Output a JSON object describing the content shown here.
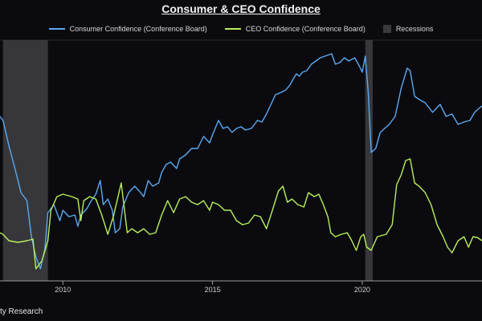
{
  "chart_data": {
    "type": "line",
    "title": "Consumer & CEO Confidence",
    "x_range": [
      2007.9,
      2024.0
    ],
    "x_ticks": [
      "2010",
      "2015",
      "2020"
    ],
    "y_axis": "unlabeled",
    "recession_label": "Recessions",
    "recessions": [
      [
        2008.0,
        2009.5
      ],
      [
        2020.1,
        2020.35
      ]
    ],
    "colors": {
      "background": "#0b0b0f",
      "consumer": "#5aa9f2",
      "ceo": "#b8ef5a",
      "recession": "#3a3a3e"
    },
    "series": [
      {
        "name": "Consumer Confidence (Conference Board)",
        "color": "#5aa9f2",
        "points": [
          [
            2007.9,
            145
          ],
          [
            2008.0,
            150
          ],
          [
            2008.2,
            182
          ],
          [
            2008.4,
            210
          ],
          [
            2008.6,
            240
          ],
          [
            2008.8,
            250
          ],
          [
            2008.95,
            295
          ],
          [
            2009.1,
            320
          ],
          [
            2009.25,
            335
          ],
          [
            2009.4,
            310
          ],
          [
            2009.5,
            265
          ],
          [
            2009.7,
            255
          ],
          [
            2009.9,
            275
          ],
          [
            2010.0,
            262
          ],
          [
            2010.2,
            270
          ],
          [
            2010.4,
            268
          ],
          [
            2010.5,
            282
          ],
          [
            2010.6,
            268
          ],
          [
            2010.8,
            260
          ],
          [
            2010.95,
            250
          ],
          [
            2011.1,
            242
          ],
          [
            2011.25,
            225
          ],
          [
            2011.35,
            255
          ],
          [
            2011.5,
            248
          ],
          [
            2011.65,
            262
          ],
          [
            2011.75,
            290
          ],
          [
            2011.9,
            285
          ],
          [
            2012.0,
            258
          ],
          [
            2012.2,
            240
          ],
          [
            2012.4,
            232
          ],
          [
            2012.55,
            238
          ],
          [
            2012.7,
            245
          ],
          [
            2012.85,
            225
          ],
          [
            2013.0,
            232
          ],
          [
            2013.2,
            228
          ],
          [
            2013.3,
            215
          ],
          [
            2013.45,
            205
          ],
          [
            2013.6,
            202
          ],
          [
            2013.8,
            210
          ],
          [
            2013.9,
            198
          ],
          [
            2014.1,
            193
          ],
          [
            2014.3,
            185
          ],
          [
            2014.5,
            185
          ],
          [
            2014.7,
            170
          ],
          [
            2014.9,
            178
          ],
          [
            2015.0,
            168
          ],
          [
            2015.2,
            150
          ],
          [
            2015.35,
            160
          ],
          [
            2015.5,
            158
          ],
          [
            2015.65,
            165
          ],
          [
            2015.8,
            160
          ],
          [
            2015.95,
            158
          ],
          [
            2016.1,
            162
          ],
          [
            2016.3,
            160
          ],
          [
            2016.5,
            150
          ],
          [
            2016.65,
            152
          ],
          [
            2016.8,
            142
          ],
          [
            2016.95,
            130
          ],
          [
            2017.1,
            118
          ],
          [
            2017.3,
            115
          ],
          [
            2017.45,
            112
          ],
          [
            2017.6,
            105
          ],
          [
            2017.7,
            98
          ],
          [
            2017.8,
            92
          ],
          [
            2017.9,
            95
          ],
          [
            2018.0,
            90
          ],
          [
            2018.15,
            88
          ],
          [
            2018.3,
            80
          ],
          [
            2018.45,
            76
          ],
          [
            2018.6,
            72
          ],
          [
            2018.75,
            70
          ],
          [
            2018.9,
            68
          ],
          [
            2018.98,
            67
          ],
          [
            2019.1,
            80
          ],
          [
            2019.25,
            78
          ],
          [
            2019.4,
            72
          ],
          [
            2019.55,
            76
          ],
          [
            2019.75,
            72
          ],
          [
            2019.9,
            82
          ],
          [
            2020.0,
            90
          ],
          [
            2020.1,
            70
          ],
          [
            2020.2,
            115
          ],
          [
            2020.3,
            190
          ],
          [
            2020.45,
            185
          ],
          [
            2020.6,
            165
          ],
          [
            2020.75,
            160
          ],
          [
            2020.9,
            155
          ],
          [
            2021.1,
            145
          ],
          [
            2021.3,
            110
          ],
          [
            2021.5,
            85
          ],
          [
            2021.6,
            88
          ],
          [
            2021.75,
            120
          ],
          [
            2021.95,
            125
          ],
          [
            2022.1,
            128
          ],
          [
            2022.35,
            140
          ],
          [
            2022.6,
            130
          ],
          [
            2022.8,
            145
          ],
          [
            2023.0,
            142
          ],
          [
            2023.2,
            155
          ],
          [
            2023.4,
            152
          ],
          [
            2023.6,
            150
          ],
          [
            2023.75,
            140
          ],
          [
            2023.9,
            135
          ],
          [
            2024.0,
            132
          ]
        ]
      },
      {
        "name": "CEO Confidence (Conference Board)",
        "color": "#b8ef5a",
        "points": [
          [
            2007.9,
            290
          ],
          [
            2008.0,
            292
          ],
          [
            2008.2,
            300
          ],
          [
            2008.5,
            302
          ],
          [
            2008.8,
            300
          ],
          [
            2009.0,
            298
          ],
          [
            2009.1,
            335
          ],
          [
            2009.3,
            325
          ],
          [
            2009.5,
            300
          ],
          [
            2009.6,
            262
          ],
          [
            2009.8,
            245
          ],
          [
            2010.0,
            242
          ],
          [
            2010.3,
            245
          ],
          [
            2010.5,
            248
          ],
          [
            2010.6,
            275
          ],
          [
            2010.7,
            250
          ],
          [
            2010.9,
            245
          ],
          [
            2011.1,
            248
          ],
          [
            2011.3,
            268
          ],
          [
            2011.5,
            292
          ],
          [
            2011.7,
            268
          ],
          [
            2011.95,
            228
          ],
          [
            2012.15,
            290
          ],
          [
            2012.3,
            285
          ],
          [
            2012.5,
            290
          ],
          [
            2012.7,
            285
          ],
          [
            2012.9,
            292
          ],
          [
            2013.1,
            290
          ],
          [
            2013.3,
            268
          ],
          [
            2013.5,
            250
          ],
          [
            2013.7,
            265
          ],
          [
            2013.9,
            248
          ],
          [
            2014.1,
            245
          ],
          [
            2014.3,
            252
          ],
          [
            2014.5,
            255
          ],
          [
            2014.7,
            250
          ],
          [
            2014.9,
            262
          ],
          [
            2015.0,
            252
          ],
          [
            2015.2,
            255
          ],
          [
            2015.4,
            262
          ],
          [
            2015.6,
            262
          ],
          [
            2015.8,
            275
          ],
          [
            2016.0,
            280
          ],
          [
            2016.2,
            278
          ],
          [
            2016.4,
            268
          ],
          [
            2016.6,
            270
          ],
          [
            2016.8,
            285
          ],
          [
            2017.0,
            262
          ],
          [
            2017.2,
            238
          ],
          [
            2017.35,
            232
          ],
          [
            2017.5,
            252
          ],
          [
            2017.65,
            248
          ],
          [
            2017.85,
            255
          ],
          [
            2018.05,
            258
          ],
          [
            2018.2,
            240
          ],
          [
            2018.4,
            245
          ],
          [
            2018.55,
            242
          ],
          [
            2018.7,
            255
          ],
          [
            2018.85,
            270
          ],
          [
            2018.95,
            290
          ],
          [
            2019.1,
            295
          ],
          [
            2019.3,
            292
          ],
          [
            2019.5,
            290
          ],
          [
            2019.65,
            300
          ],
          [
            2019.8,
            312
          ],
          [
            2019.95,
            295
          ],
          [
            2020.05,
            292
          ],
          [
            2020.15,
            308
          ],
          [
            2020.3,
            312
          ],
          [
            2020.5,
            295
          ],
          [
            2020.8,
            292
          ],
          [
            2021.0,
            280
          ],
          [
            2021.15,
            230
          ],
          [
            2021.3,
            218
          ],
          [
            2021.45,
            200
          ],
          [
            2021.6,
            198
          ],
          [
            2021.75,
            228
          ],
          [
            2021.9,
            232
          ],
          [
            2022.1,
            240
          ],
          [
            2022.3,
            255
          ],
          [
            2022.5,
            280
          ],
          [
            2022.7,
            295
          ],
          [
            2022.85,
            308
          ],
          [
            2023.0,
            315
          ],
          [
            2023.2,
            300
          ],
          [
            2023.4,
            295
          ],
          [
            2023.55,
            308
          ],
          [
            2023.7,
            295
          ],
          [
            2023.85,
            296
          ],
          [
            2024.0,
            300
          ]
        ]
      }
    ]
  },
  "footer": {
    "text": "ty Research"
  }
}
